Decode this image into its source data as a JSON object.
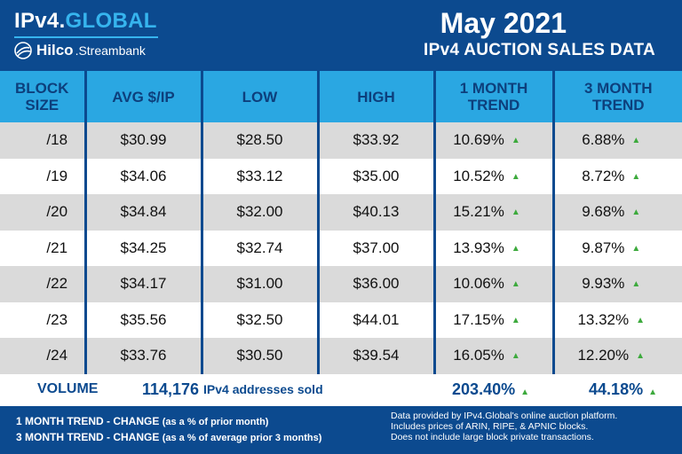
{
  "brand": {
    "title_main": "IPv4.",
    "title_accent": "GLOBAL",
    "hilco": "Hilco",
    "streambank": ".Streambank"
  },
  "header": {
    "month": "May 2021",
    "subtitle": "IPv4 AUCTION SALES DATA"
  },
  "table": {
    "headers": {
      "block_l1": "BLOCK",
      "block_l2": "SIZE",
      "avg": "AVG $/IP",
      "low": "LOW",
      "high": "HIGH",
      "m1_l1": "1 MONTH",
      "m1_l2": "TREND",
      "m3_l1": "3 MONTH",
      "m3_l2": "TREND"
    },
    "rows": [
      {
        "block": "/18",
        "avg": "$30.99",
        "low": "$28.50",
        "high": "$33.92",
        "m1": "10.69%",
        "m3": "6.88%"
      },
      {
        "block": "/19",
        "avg": "$34.06",
        "low": "$33.12",
        "high": "$35.00",
        "m1": "10.52%",
        "m3": "8.72%"
      },
      {
        "block": "/20",
        "avg": "$34.84",
        "low": "$32.00",
        "high": "$40.13",
        "m1": "15.21%",
        "m3": "9.68%"
      },
      {
        "block": "/21",
        "avg": "$34.25",
        "low": "$32.74",
        "high": "$37.00",
        "m1": "13.93%",
        "m3": "9.87%"
      },
      {
        "block": "/22",
        "avg": "$34.17",
        "low": "$31.00",
        "high": "$36.00",
        "m1": "10.06%",
        "m3": "9.93%"
      },
      {
        "block": "/23",
        "avg": "$35.56",
        "low": "$32.50",
        "high": "$44.01",
        "m1": "17.15%",
        "m3": "13.32%"
      },
      {
        "block": "/24",
        "avg": "$33.76",
        "low": "$30.50",
        "high": "$39.54",
        "m1": "16.05%",
        "m3": "12.20%"
      }
    ],
    "trend_icon": "up-triangle-icon"
  },
  "volume": {
    "label": "VOLUME",
    "value": "114,176",
    "desc": "IPv4 addresses sold",
    "m1": "203.40%",
    "m3": "44.18%"
  },
  "footer": {
    "legend1_bold": "1 MONTH TREND - CHANGE",
    "legend1_note": "(as a % of prior month)",
    "legend2_bold": "3 MONTH TREND - CHANGE",
    "legend2_note": "(as a % of average prior 3 months)",
    "source_1": "Data provided by IPv4.Global's online auction platform.",
    "source_2": "Includes prices of ARIN, RIPE, & APNIC blocks.",
    "source_3": "Does not include large block private transactions."
  },
  "colors": {
    "navy": "#0c4a8f",
    "header_blue": "#2aa7e2",
    "accent_blue": "#36b4ee",
    "trend_green": "#3daa3d",
    "row_gray": "#dadada"
  }
}
